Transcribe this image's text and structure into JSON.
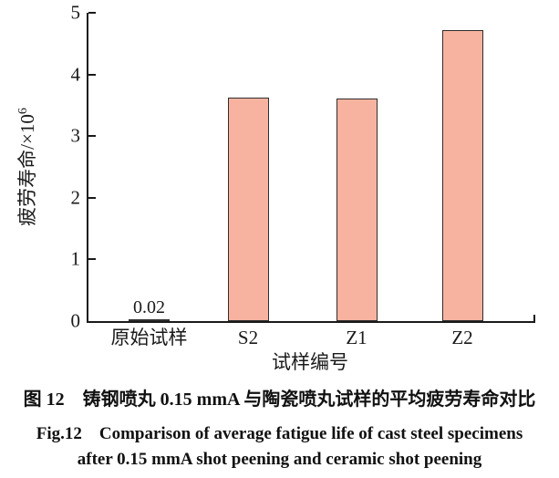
{
  "figure": {
    "caption_zh": "图 12 铸钢喷丸 0.15 mmA 与陶瓷喷丸试样的平均疲劳寿命对比",
    "caption_en_line1": "Fig.12 Comparison of average fatigue life of cast steel specimens",
    "caption_en_line2": "after 0.15 mmA shot peening and ceramic shot peening"
  },
  "chart_data": {
    "type": "bar",
    "title": "",
    "categories": [
      "原始试样",
      "S2",
      "Z1",
      "Z2"
    ],
    "values": [
      0.02,
      3.62,
      3.61,
      4.72
    ],
    "value_labels": [
      "0.02",
      "",
      "",
      ""
    ],
    "xlabel": "试样编号",
    "ylabel": "疲劳寿命/×10⁶",
    "ylabel_base": "疲劳寿命/×10",
    "ylabel_exponent": "6",
    "ylim": [
      0,
      5
    ],
    "yticks": [
      0,
      1,
      2,
      3,
      4,
      5
    ],
    "grid": false,
    "legend_position": "none",
    "bar_fill_color": "#F8B3A0",
    "bar_border_color": "#2E2E2E",
    "axis_color": "#1A1A1A"
  }
}
